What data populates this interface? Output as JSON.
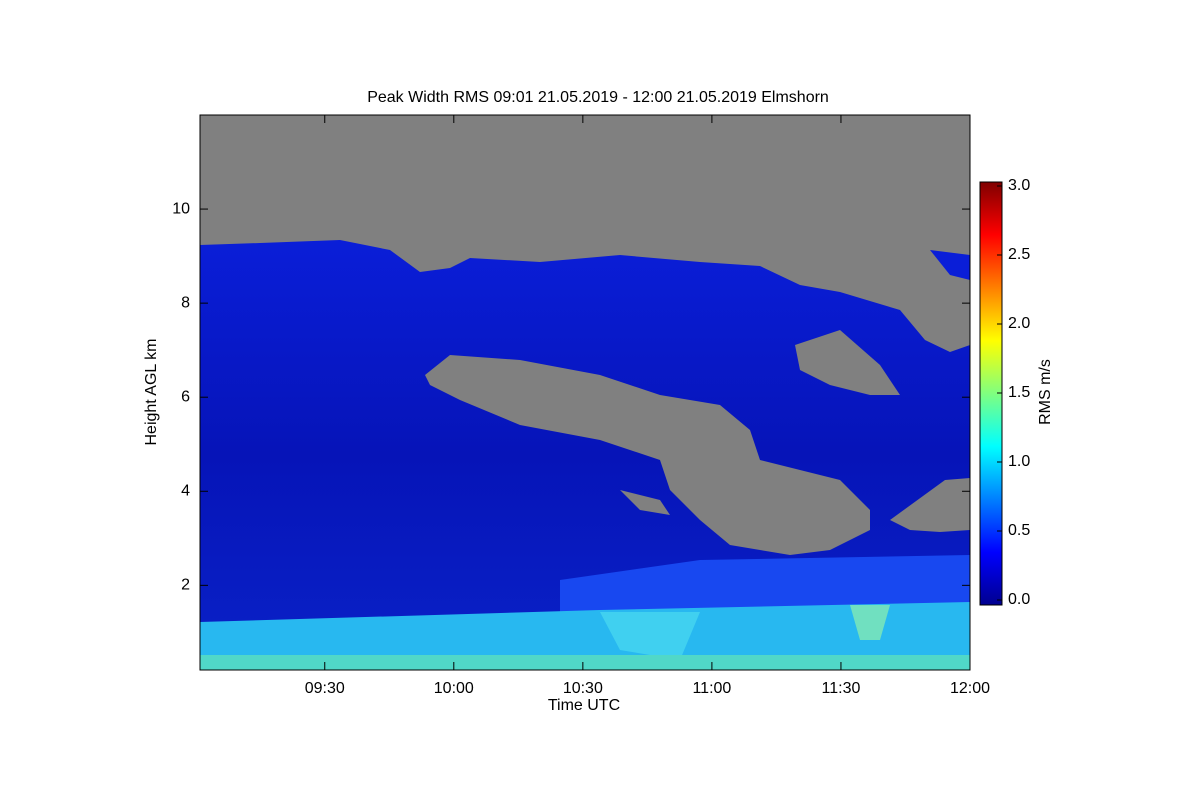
{
  "chart_data": {
    "type": "heatmap",
    "title": "Peak Width RMS   09:01 21.05.2019 - 12:00 21.05.2019 Elmshorn",
    "x_label": "Time UTC",
    "y_label": "Height AGL km",
    "colorbar_label": "RMS m/s",
    "xlim": [
      "09:01",
      "12:00"
    ],
    "xticks": [
      "09:30",
      "10:00",
      "10:30",
      "11:00",
      "11:30",
      "12:00"
    ],
    "ylim": [
      0.2,
      12
    ],
    "yticks": [
      2,
      4,
      6,
      8,
      10
    ],
    "clim": [
      0,
      3
    ],
    "cticks": [
      {
        "value": 0,
        "label": "0.0"
      },
      {
        "value": 0.5,
        "label": "0.5"
      },
      {
        "value": 1,
        "label": "1.0"
      },
      {
        "value": 1.5,
        "label": "1.5"
      },
      {
        "value": 2,
        "label": "2.0"
      },
      {
        "value": 2.5,
        "label": "2.5"
      },
      {
        "value": 3,
        "label": "3.0"
      }
    ],
    "colormap": "jet",
    "missing_color": "#808080"
  }
}
